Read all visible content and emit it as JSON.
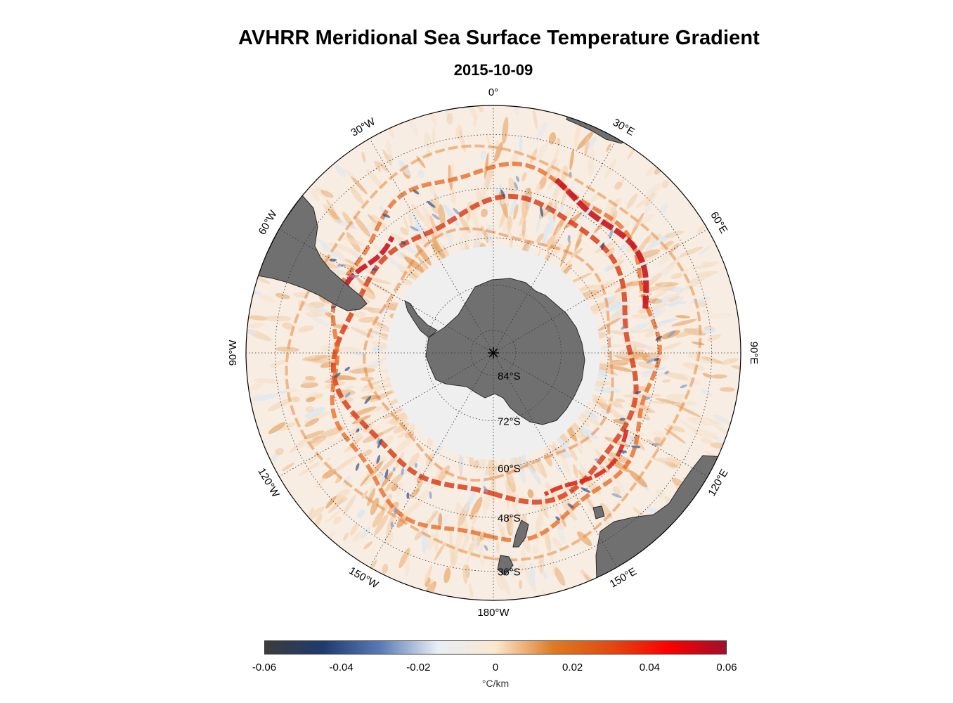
{
  "title": "AVHRR Meridional Sea Surface Temperature Gradient",
  "subtitle": "2015-10-09",
  "map": {
    "projection": "south polar stereographic",
    "outer_latitude": -30,
    "longitude_labels": [
      {
        "lon": 0,
        "text": "0°"
      },
      {
        "lon": 30,
        "text": "30°E"
      },
      {
        "lon": 60,
        "text": "60°E"
      },
      {
        "lon": 90,
        "text": "90°E"
      },
      {
        "lon": 120,
        "text": "120°E"
      },
      {
        "lon": 150,
        "text": "150°E"
      },
      {
        "lon": 180,
        "text": "180°W"
      },
      {
        "lon": -150,
        "text": "150°W"
      },
      {
        "lon": -120,
        "text": "120°W"
      },
      {
        "lon": -90,
        "text": "90°W"
      },
      {
        "lon": -60,
        "text": "60°W"
      },
      {
        "lon": -30,
        "text": "30°W"
      }
    ],
    "latitude_labels": [
      {
        "lat": -84,
        "text": "84°S"
      },
      {
        "lat": -72,
        "text": "72°S"
      },
      {
        "lat": -60,
        "text": "60°S"
      },
      {
        "lat": -48,
        "text": "48°S"
      },
      {
        "lat": -36,
        "text": "36°S"
      }
    ],
    "colors": {
      "land": "#707070",
      "ice": "#efefef",
      "ocean_base": "#f8ede3",
      "grid": "#333333"
    }
  },
  "colorbar": {
    "ticks": [
      "-0.06",
      "-0.04",
      "-0.02",
      "0",
      "0.02",
      "0.04",
      "0.06"
    ],
    "min": -0.06,
    "max": 0.06,
    "unit": "°C/km",
    "colors": [
      "#3c3c3c",
      "#1f3a6d",
      "#5a7ab6",
      "#e8eef6",
      "#fbe7cf",
      "#dd7b22",
      "#e14a12",
      "#fb0000",
      "#a0102a"
    ]
  }
}
